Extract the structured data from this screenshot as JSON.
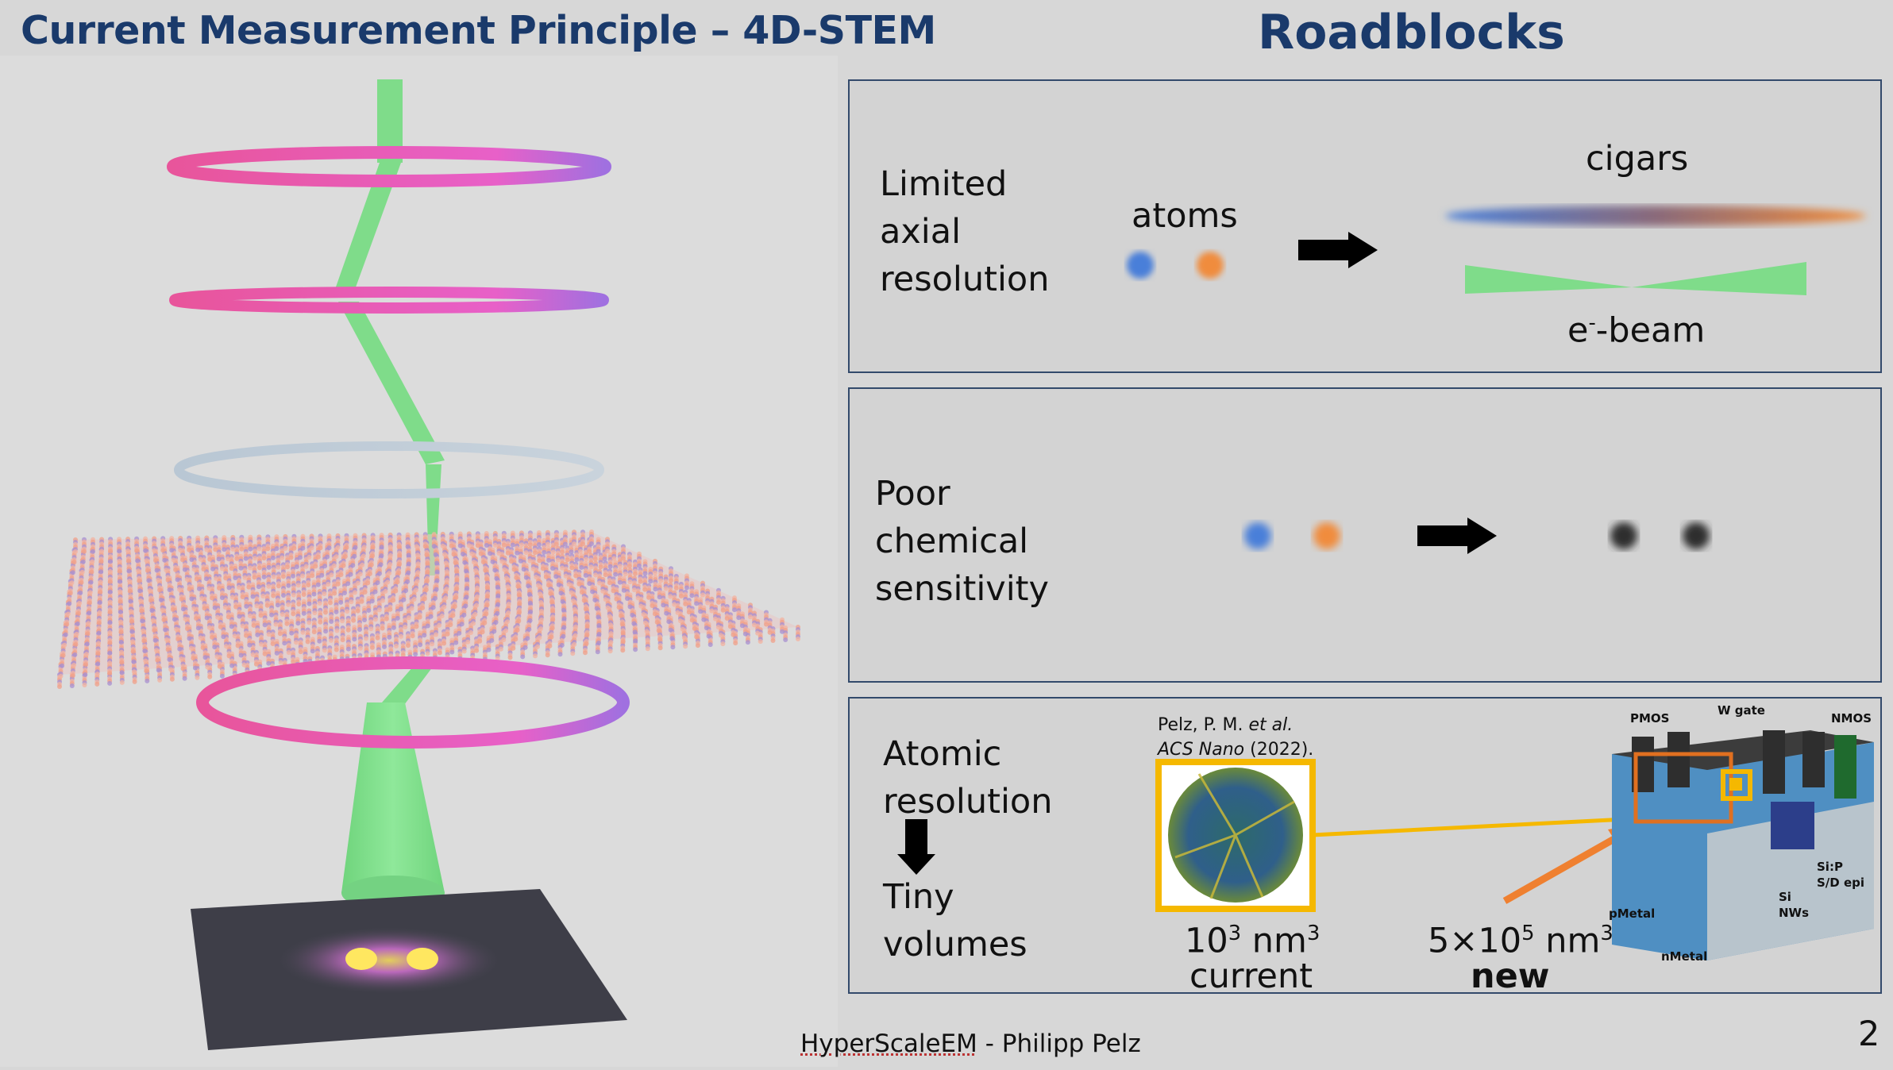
{
  "left_title": "Current Measurement Principle – 4D-STEM",
  "right_title": "Roadblocks",
  "rows": [
    {
      "label_lines": [
        "Limited",
        "axial",
        "resolution"
      ],
      "atoms_label": "atoms",
      "cigars_label": "cigars",
      "beam_label_prefix": "e",
      "beam_label_sup": "-",
      "beam_label_suffix": "-beam"
    },
    {
      "label_lines": [
        "Poor",
        "chemical",
        "sensitivity"
      ]
    },
    {
      "label_lines_top": [
        "Atomic",
        "resolution"
      ],
      "label_lines_bottom": [
        "Tiny",
        "volumes"
      ],
      "citation_line1_prefix": "Pelz, P. M. ",
      "citation_line1_italic": "et al.",
      "citation_line2_italic": "ACS Nano",
      "citation_line2_suffix": " (2022).",
      "current_volume_base": "10",
      "current_volume_exp": "3",
      "current_volume_unit": " nm",
      "current_volume_unit_exp": "3",
      "current_label": "current",
      "new_volume_prefix": "5×10",
      "new_volume_exp": "5",
      "new_volume_unit": " nm",
      "new_volume_unit_exp": "3",
      "new_label": "new",
      "device_labels": {
        "pmos": "PMOS",
        "w_gate": "W gate",
        "nmos": "NMOS",
        "sip": "Si:P",
        "sd_epi": "S/D epi",
        "si": "Si",
        "nws": "NWs",
        "pmetal": "pMetal",
        "nmetal": "nMetal"
      }
    }
  ],
  "footer": {
    "brand": "HyperScaleEM",
    "rest": " - Philipp Pelz"
  },
  "page_number": "2",
  "colors": {
    "title_blue": "#1a3a6b",
    "beam_green": "#7fdc8a",
    "ring_pink": "#e8559b",
    "ring_violet": "#a070e0",
    "ring_silver": "#b9c7d4",
    "atom_blue": "#4a7fd9",
    "atom_orange": "#f08c3c",
    "highlight_yellow": "#f5b800",
    "arrow_orange": "#ef8030"
  }
}
